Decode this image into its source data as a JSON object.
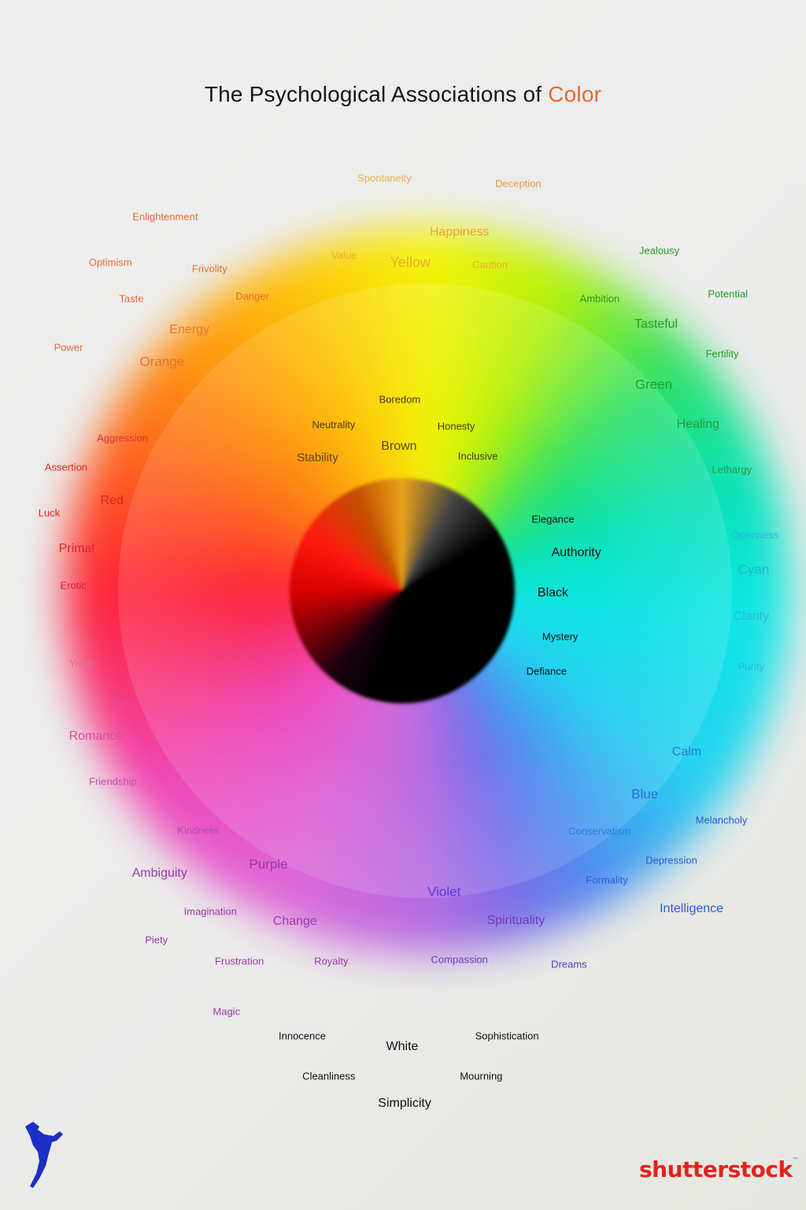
{
  "title": {
    "prefix": "The Psychological Associations of",
    "highlight": "Color",
    "highlight_color": "#e36b2a"
  },
  "brand": {
    "name": "shutterstock",
    "mark": "™",
    "color": "#e2231a",
    "mascot_icon": "jumping-figure-icon"
  },
  "labels": [
    {
      "text": "Spontaneity",
      "color": "#e9b04a",
      "size": "s13",
      "xp": 47.7,
      "yp": 14.7
    },
    {
      "text": "Deception",
      "color": "#e69e3f",
      "size": "s13",
      "xp": 64.3,
      "yp": 15.2
    },
    {
      "text": "Enlightenment",
      "color": "#e86839",
      "size": "s13",
      "xp": 20.5,
      "yp": 17.9
    },
    {
      "text": "Happiness",
      "color": "#efa52e",
      "size": "s16",
      "xp": 57.0,
      "yp": 19.2
    },
    {
      "text": "Optimism",
      "color": "#e86b39",
      "size": "s13",
      "xp": 13.7,
      "yp": 21.7
    },
    {
      "text": "Frivolity",
      "color": "#e8732e",
      "size": "s13",
      "xp": 26.0,
      "yp": 22.2
    },
    {
      "text": "Value",
      "color": "#efae32",
      "size": "s13",
      "xp": 42.7,
      "yp": 21.1
    },
    {
      "text": "Yellow",
      "color": "#eaac2a",
      "size": "s18",
      "xp": 50.9,
      "yp": 21.7
    },
    {
      "text": "Caution",
      "color": "#eaac2a",
      "size": "s13",
      "xp": 60.8,
      "yp": 21.9
    },
    {
      "text": "Jealousy",
      "color": "#2a9a24",
      "size": "s13",
      "xp": 81.8,
      "yp": 20.7
    },
    {
      "text": "Taste",
      "color": "#e8683a",
      "size": "s13",
      "xp": 16.3,
      "yp": 24.7
    },
    {
      "text": "Danger",
      "color": "#ea6e26",
      "size": "s13",
      "xp": 31.3,
      "yp": 24.5
    },
    {
      "text": "Ambition",
      "color": "#2a9a24",
      "size": "s13",
      "xp": 74.4,
      "yp": 24.7
    },
    {
      "text": "Potential",
      "color": "#2a9a24",
      "size": "s13",
      "xp": 90.3,
      "yp": 24.3
    },
    {
      "text": "Energy",
      "color": "#ea7a33",
      "size": "s16",
      "xp": 23.5,
      "yp": 27.3
    },
    {
      "text": "Tasteful",
      "color": "#2a9a24",
      "size": "s16",
      "xp": 81.4,
      "yp": 26.8
    },
    {
      "text": "Power",
      "color": "#e86a40",
      "size": "s13",
      "xp": 8.5,
      "yp": 28.7
    },
    {
      "text": "Fertility",
      "color": "#2a9a24",
      "size": "s13",
      "xp": 89.6,
      "yp": 29.2
    },
    {
      "text": "Orange",
      "color": "#ea6e30",
      "size": "s17",
      "xp": 20.1,
      "yp": 29.9
    },
    {
      "text": "Green",
      "color": "#2a9a24",
      "size": "s17",
      "xp": 81.1,
      "yp": 31.8
    },
    {
      "text": "Boredom",
      "color": "#4a3a1e",
      "size": "s13",
      "xp": 49.6,
      "yp": 33.0
    },
    {
      "text": "Neutrality",
      "color": "#4a3a1e",
      "size": "s13",
      "xp": 41.4,
      "yp": 35.1
    },
    {
      "text": "Honesty",
      "color": "#4a3a1e",
      "size": "s13",
      "xp": 56.6,
      "yp": 35.2
    },
    {
      "text": "Healing",
      "color": "#2a9a3a",
      "size": "s16",
      "xp": 86.6,
      "yp": 35.1
    },
    {
      "text": "Aggression",
      "color": "#e03232",
      "size": "s13",
      "xp": 15.2,
      "yp": 36.2
    },
    {
      "text": "Brown",
      "color": "#5a4a1e",
      "size": "s16",
      "xp": 49.5,
      "yp": 36.9
    },
    {
      "text": "Stability",
      "color": "#5a4a1e",
      "size": "s15",
      "xp": 39.4,
      "yp": 37.8
    },
    {
      "text": "Inclusive",
      "color": "#4a3a1e",
      "size": "s13",
      "xp": 59.3,
      "yp": 37.7
    },
    {
      "text": "Assertion",
      "color": "#e02a2a",
      "size": "s13",
      "xp": 8.2,
      "yp": 38.6
    },
    {
      "text": "Lethargy",
      "color": "#2a9a3a",
      "size": "s13",
      "xp": 90.8,
      "yp": 38.8
    },
    {
      "text": "Red",
      "color": "#e02020",
      "size": "s16",
      "xp": 13.9,
      "yp": 41.4
    },
    {
      "text": "Luck",
      "color": "#e02020",
      "size": "s13",
      "xp": 6.1,
      "yp": 42.4
    },
    {
      "text": "Elegance",
      "color": "#111111",
      "size": "s13",
      "xp": 68.6,
      "yp": 42.9
    },
    {
      "text": "Openness",
      "color": "#2ab8d8",
      "size": "s13",
      "xp": 93.7,
      "yp": 44.2
    },
    {
      "text": "Primal",
      "color": "#e02030",
      "size": "s16",
      "xp": 9.5,
      "yp": 45.4
    },
    {
      "text": "Authority",
      "color": "#111111",
      "size": "s16",
      "xp": 71.5,
      "yp": 45.7
    },
    {
      "text": "Cyan",
      "color": "#1ab8d8",
      "size": "s17",
      "xp": 93.5,
      "yp": 47.1
    },
    {
      "text": "Erotic",
      "color": "#e0203a",
      "size": "s13",
      "xp": 9.1,
      "yp": 48.4
    },
    {
      "text": "Black",
      "color": "#111111",
      "size": "s16",
      "xp": 68.6,
      "yp": 49.0
    },
    {
      "text": "Clarity",
      "color": "#2ab8d8",
      "size": "s16",
      "xp": 93.2,
      "yp": 51.0
    },
    {
      "text": "Mystery",
      "color": "#111111",
      "size": "s13",
      "xp": 69.5,
      "yp": 52.6
    },
    {
      "text": "Youth",
      "color": "#e06a9a",
      "size": "s13",
      "xp": 10.2,
      "yp": 54.8
    },
    {
      "text": "Purity",
      "color": "#2ab8d8",
      "size": "s13",
      "xp": 93.2,
      "yp": 55.1
    },
    {
      "text": "Defiance",
      "color": "#111111",
      "size": "s13",
      "xp": 67.8,
      "yp": 55.5
    },
    {
      "text": "Pink",
      "color": "#e04a9a",
      "size": "s16",
      "xp": 15.2,
      "yp": 58.2
    },
    {
      "text": "Romance",
      "color": "#e04a9a",
      "size": "s16",
      "xp": 11.9,
      "yp": 60.9
    },
    {
      "text": "Calm",
      "color": "#2a7ad8",
      "size": "s16",
      "xp": 85.2,
      "yp": 62.2
    },
    {
      "text": "Friendship",
      "color": "#c84aa8",
      "size": "s13",
      "xp": 14.0,
      "yp": 64.6
    },
    {
      "text": "Blue",
      "color": "#2a6ad8",
      "size": "s17",
      "xp": 80.0,
      "yp": 65.6
    },
    {
      "text": "Melancholy",
      "color": "#2a5ad8",
      "size": "s13",
      "xp": 89.5,
      "yp": 67.8
    },
    {
      "text": "Kindness",
      "color": "#b04aa8",
      "size": "s13",
      "xp": 24.6,
      "yp": 68.6
    },
    {
      "text": "Conservatism",
      "color": "#2a7ad8",
      "size": "s13",
      "xp": 74.4,
      "yp": 68.7
    },
    {
      "text": "Depression",
      "color": "#2a5ad8",
      "size": "s13",
      "xp": 83.3,
      "yp": 71.1
    },
    {
      "text": "Purple",
      "color": "#9a3aa8",
      "size": "s17",
      "xp": 33.3,
      "yp": 71.4
    },
    {
      "text": "Ambiguity",
      "color": "#9a3aa8",
      "size": "s16",
      "xp": 19.8,
      "yp": 72.2
    },
    {
      "text": "Formality",
      "color": "#2a5ad8",
      "size": "s13",
      "xp": 75.3,
      "yp": 72.7
    },
    {
      "text": "Violet",
      "color": "#5a3ad8",
      "size": "s17",
      "xp": 55.1,
      "yp": 73.7
    },
    {
      "text": "Intelligence",
      "color": "#2a5ad8",
      "size": "s16",
      "xp": 85.8,
      "yp": 75.1
    },
    {
      "text": "Imagination",
      "color": "#9a3aa8",
      "size": "s13",
      "xp": 26.1,
      "yp": 75.3
    },
    {
      "text": "Change",
      "color": "#9a3aa8",
      "size": "s16",
      "xp": 36.6,
      "yp": 76.2
    },
    {
      "text": "Spirituality",
      "color": "#6a3ab8",
      "size": "s16",
      "xp": 64.0,
      "yp": 76.1
    },
    {
      "text": "Piety",
      "color": "#9a3aa8",
      "size": "s13",
      "xp": 19.4,
      "yp": 77.7
    },
    {
      "text": "Frustration",
      "color": "#9a3aa8",
      "size": "s13",
      "xp": 29.7,
      "yp": 79.4
    },
    {
      "text": "Royalty",
      "color": "#9a3aa8",
      "size": "s13",
      "xp": 41.1,
      "yp": 79.4
    },
    {
      "text": "Compassion",
      "color": "#6a3ab8",
      "size": "s13",
      "xp": 57.0,
      "yp": 79.3
    },
    {
      "text": "Dreams",
      "color": "#5a3ab8",
      "size": "s13",
      "xp": 70.6,
      "yp": 79.7
    },
    {
      "text": "Magic",
      "color": "#9a3aa8",
      "size": "s13",
      "xp": 28.1,
      "yp": 83.6
    },
    {
      "text": "Innocence",
      "color": "#111111",
      "size": "s13",
      "xp": 37.5,
      "yp": 85.6
    },
    {
      "text": "Sophistication",
      "color": "#111111",
      "size": "s13",
      "xp": 62.9,
      "yp": 85.6
    },
    {
      "text": "White",
      "color": "#111111",
      "size": "s16",
      "xp": 49.9,
      "yp": 86.5
    },
    {
      "text": "Cleanliness",
      "color": "#111111",
      "size": "s13",
      "xp": 40.8,
      "yp": 88.9
    },
    {
      "text": "Mourning",
      "color": "#111111",
      "size": "s13",
      "xp": 59.7,
      "yp": 88.9
    },
    {
      "text": "Simplicity",
      "color": "#111111",
      "size": "s16",
      "xp": 50.2,
      "yp": 91.2
    }
  ]
}
